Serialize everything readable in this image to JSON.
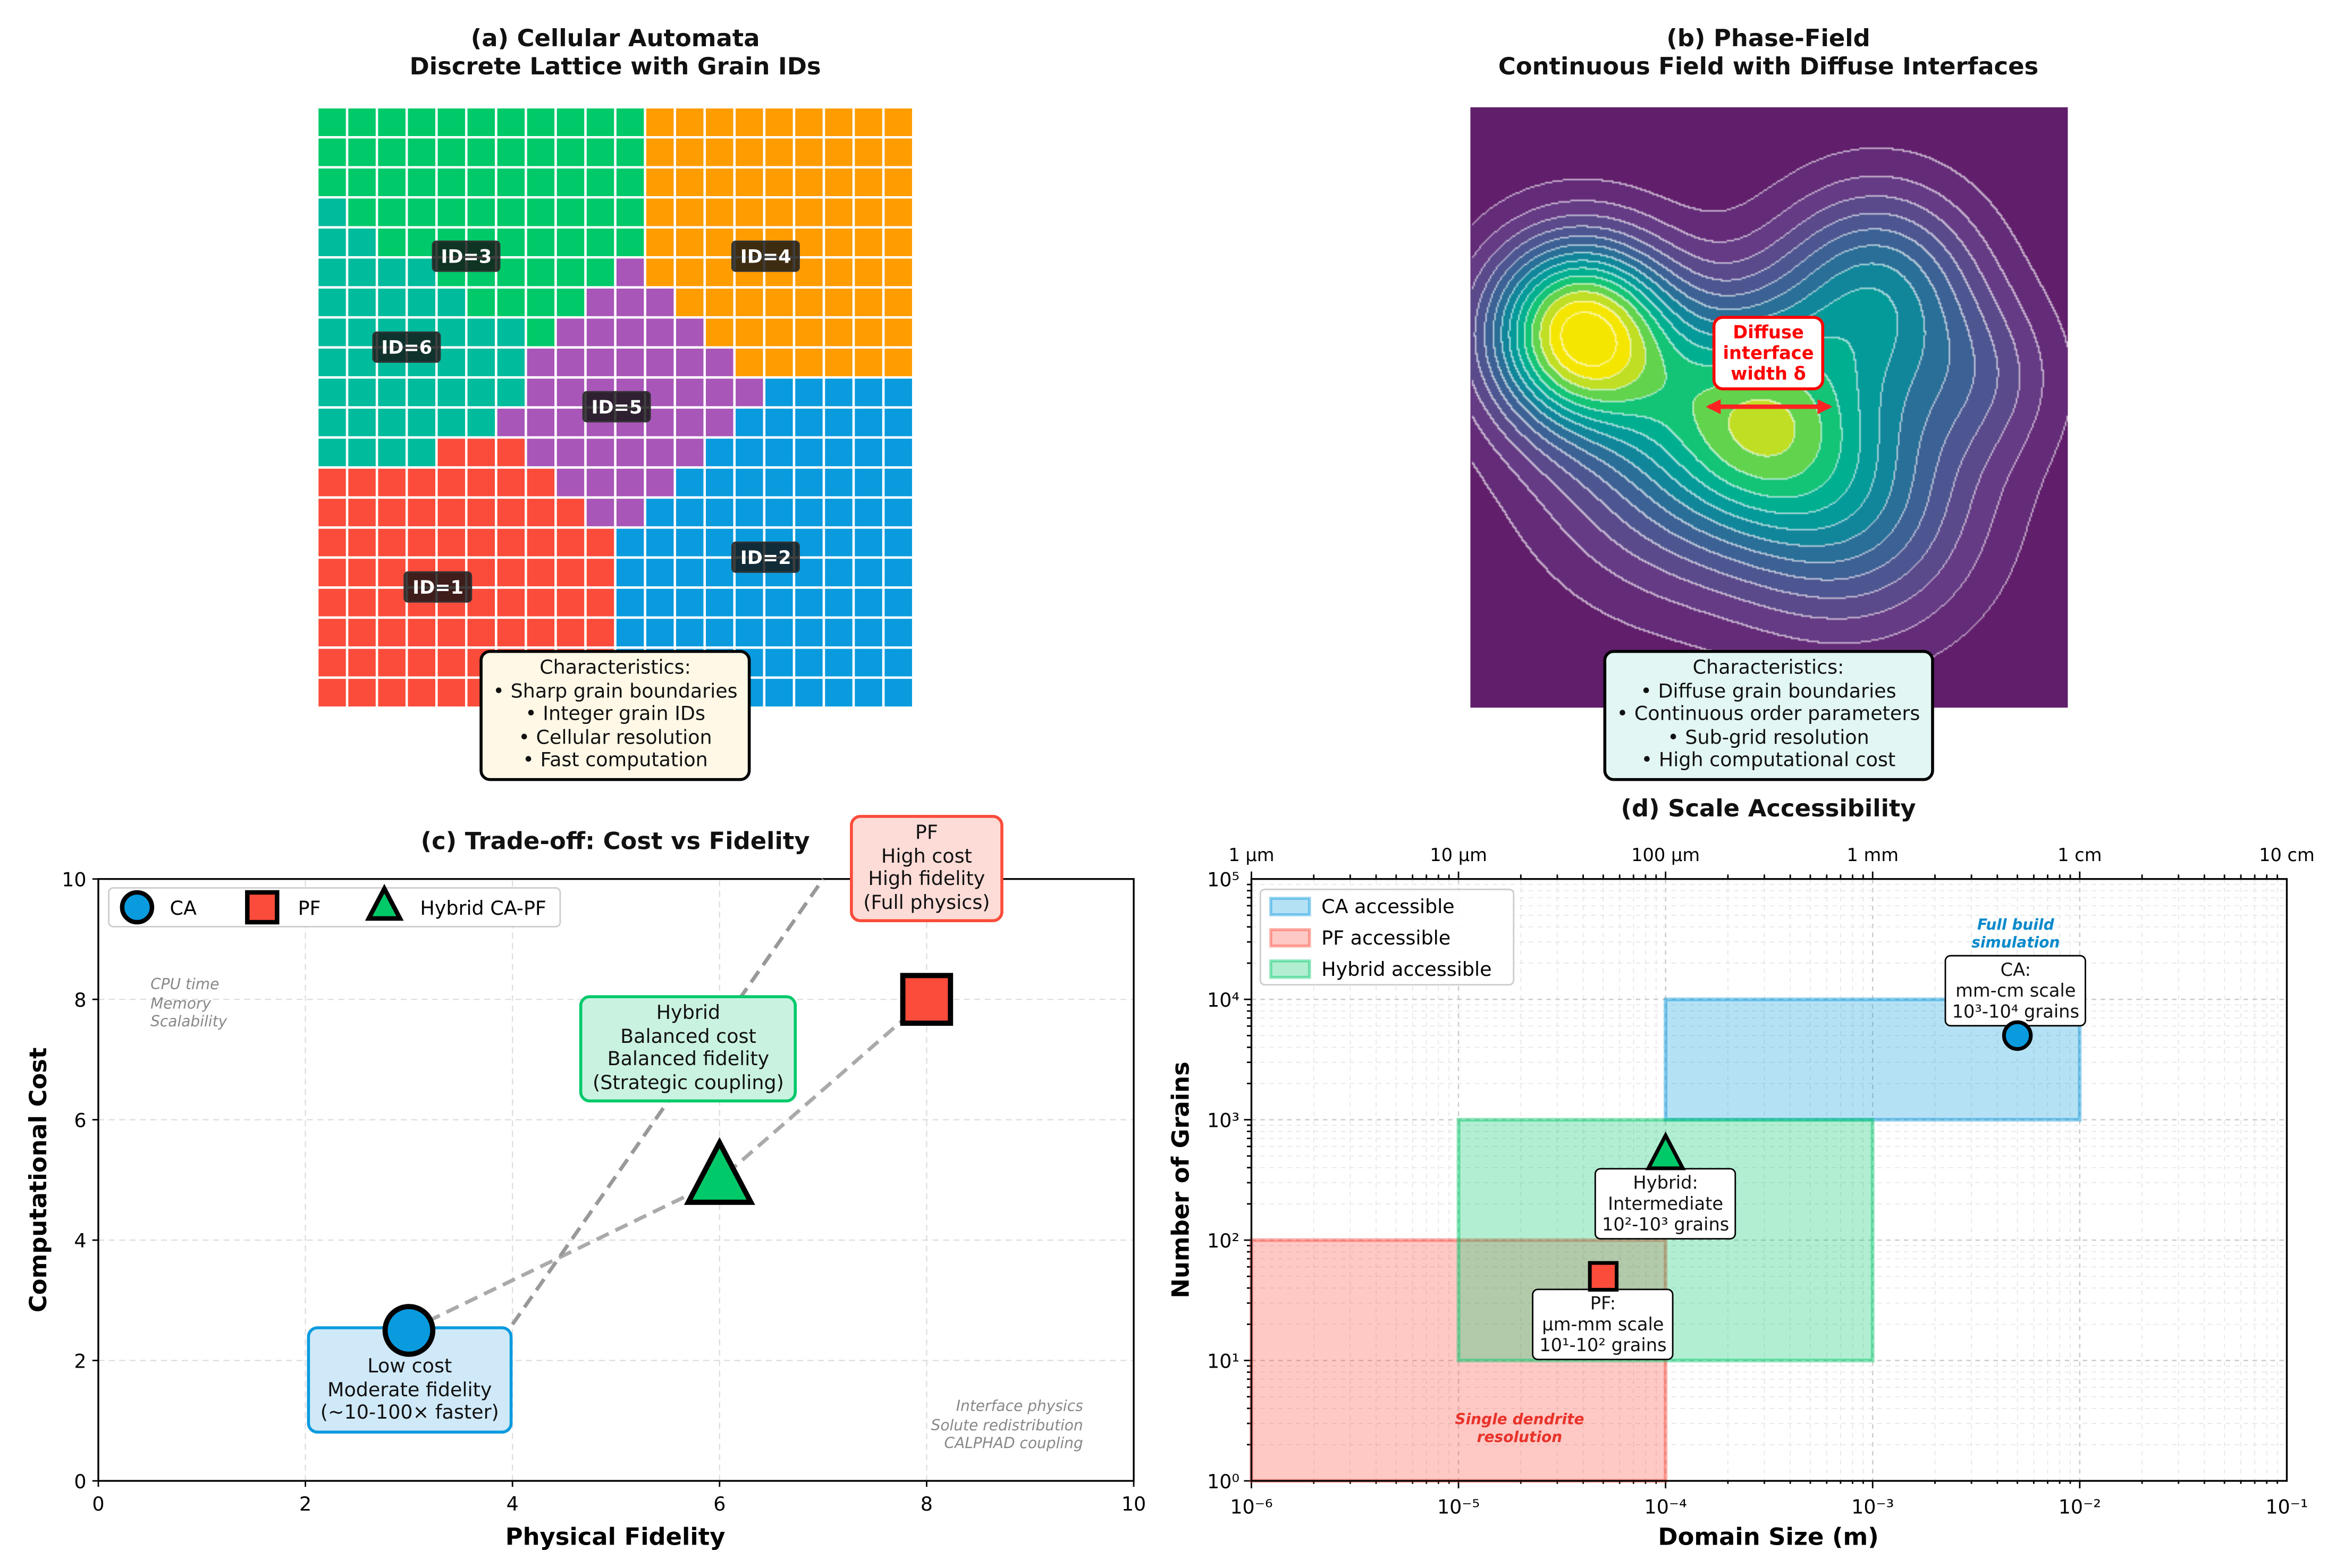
{
  "panels": {
    "a": {
      "title": "(a) Cellular Automata\nDiscrete Lattice with Grain IDs",
      "characteristics": "Characteristics:\n• Sharp grain boundaries\n• Integer grain IDs\n• Cellular resolution\n• Fast computation"
    },
    "b": {
      "title": "(b) Phase-Field\nContinuous Field with Diffuse Interfaces",
      "annotation": "Diffuse\ninterface\nwidth δ",
      "characteristics": "Characteristics:\n• Diffuse grain boundaries\n• Continuous order parameters\n• Sub-grid resolution\n• High computational cost"
    },
    "c": {
      "title": "(c) Trade-off: Cost vs Fidelity",
      "note_left": "CPU time\nMemory\nScalability",
      "note_right": "Interface physics\nSolute redistribution\nCALPHAD coupling",
      "box_pf": "PF\nHigh cost\nHigh fidelity\n(Full physics)",
      "box_hybrid": "Hybrid\nBalanced cost\nBalanced fidelity\n(Strategic coupling)",
      "box_ca": "Low cost\nModerate fidelity\n(~10-100× faster)"
    },
    "d": {
      "title": "(d) Scale Accessibility",
      "box_ca": "CA:\nmm-cm scale\n10³-10⁴ grains",
      "box_hybrid": "Hybrid:\nIntermediate\n10²-10³ grains",
      "box_pf": "PF:\nμm-mm scale\n10¹-10² grains",
      "note_ca": "Full build\nsimulation",
      "note_pf": "Single dendrite\nresolution"
    }
  },
  "colors": {
    "CA": "#0a9ade",
    "PF": "#fb4b3b",
    "Hybrid": "#00c96a",
    "orange": "#ff9d00",
    "purple": "#a856b8",
    "teal": "#00bc9c"
  },
  "chart_data": [
    {
      "type": "heatmap",
      "panel": "a",
      "grain_colors": {
        "1": "#fb4b3b",
        "2": "#0a9ade",
        "3": "#00c96a",
        "4": "#ff9d00",
        "5": "#a856b8",
        "6": "#00bc9c"
      },
      "labels": [
        "ID=1",
        "ID=2",
        "ID=3",
        "ID=4",
        "ID=5",
        "ID=6"
      ],
      "grid": [
        "33333333333444444444",
        "33333333333444444444",
        "33333333333444444444",
        "63333333333444444444",
        "66333333333444444444",
        "66663333335444444444",
        "66666333355544444444",
        "66666663555554444444",
        "66666665555555444444",
        "66666665555555522222",
        "66666655555555222222",
        "66661115555552222222",
        "11111111555522222222",
        "11111111155222222222",
        "11111111112222222222",
        "11111111112222222222",
        "11111111112222222222",
        "11111111112222222222",
        "11111111112222222222",
        "11111111112222222222"
      ]
    },
    {
      "type": "heatmap",
      "panel": "b",
      "colormap": "viridis",
      "contours": true
    },
    {
      "type": "scatter",
      "panel": "c",
      "xlabel": "Physical Fidelity",
      "ylabel": "Computational Cost",
      "xlim": [
        0,
        10
      ],
      "ylim": [
        0,
        10
      ],
      "xticks": [
        0,
        2,
        4,
        6,
        8,
        10
      ],
      "yticks": [
        0,
        2,
        4,
        6,
        8,
        10
      ],
      "grid": true,
      "legend": "top-left",
      "series": [
        {
          "name": "CA",
          "marker": "circle",
          "x": 3,
          "y": 2.5
        },
        {
          "name": "PF",
          "marker": "square",
          "x": 8,
          "y": 8
        },
        {
          "name": "Hybrid CA-PF",
          "marker": "triangle",
          "x": 6,
          "y": 5
        }
      ],
      "trend_path": [
        [
          3,
          2.5
        ],
        [
          6,
          5
        ],
        [
          8,
          8
        ]
      ],
      "connector": [
        [
          4,
          2.6
        ],
        [
          7,
          10
        ]
      ]
    },
    {
      "type": "scatter",
      "panel": "d",
      "xlabel": "Domain Size (m)",
      "ylabel": "Number of Grains",
      "xscale": "log",
      "yscale": "log",
      "xlim": [
        1e-06,
        0.1
      ],
      "ylim": [
        1,
        100000.0
      ],
      "xtick_labels": [
        "10⁻⁶",
        "10⁻⁵",
        "10⁻⁴",
        "10⁻³",
        "10⁻²",
        "10⁻¹"
      ],
      "ytick_labels": [
        "10⁰",
        "10¹",
        "10²",
        "10³",
        "10⁴",
        "10⁵"
      ],
      "top_tick_labels": [
        "1 μm",
        "10 μm",
        "100 μm",
        "1 mm",
        "1 cm",
        "10 cm"
      ],
      "grid": true,
      "legend": "top-left",
      "regions": [
        {
          "name": "CA accessible",
          "x": [
            0.0001,
            0.01
          ],
          "y": [
            1000.0,
            10000.0
          ],
          "color": "#0a9ade"
        },
        {
          "name": "PF accessible",
          "x": [
            1e-06,
            0.0001
          ],
          "y": [
            1,
            100.0
          ],
          "color": "#fb4b3b"
        },
        {
          "name": "Hybrid accessible",
          "x": [
            1e-05,
            0.001
          ],
          "y": [
            10,
            1000.0
          ],
          "color": "#00c96a"
        }
      ],
      "points": [
        {
          "label": "CA",
          "marker": "circle",
          "x": 0.005,
          "y": 5000.0
        },
        {
          "label": "Hybrid",
          "marker": "triangle",
          "x": 0.0001,
          "y": 500
        },
        {
          "label": "PF",
          "marker": "square",
          "x": 5e-05,
          "y": 50
        }
      ]
    }
  ]
}
